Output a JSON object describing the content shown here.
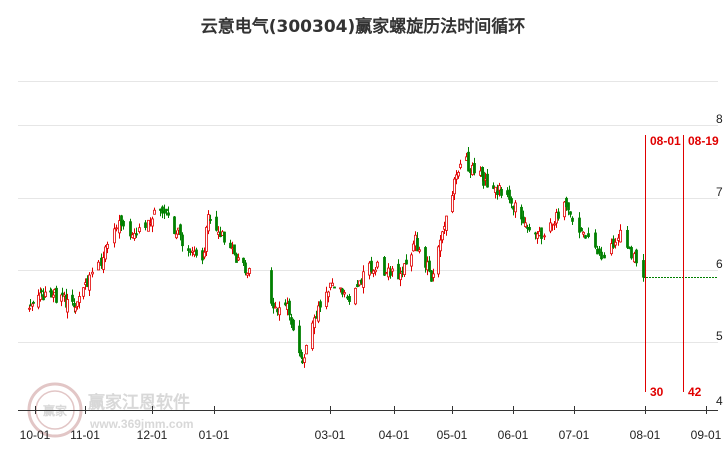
{
  "chart_data": {
    "type": "candlestick",
    "title": "云意电气(300304)赢家螺旋历法时间循环",
    "y_ticks": [
      "8",
      "7",
      "6",
      "5",
      "4"
    ],
    "y_tick_values": [
      8,
      7,
      6,
      5,
      4
    ],
    "ylim": [
      4,
      8.6
    ],
    "x_ticks": [
      "10-01",
      "11-01",
      "12-01",
      "01-01",
      "03-01",
      "04-01",
      "05-01",
      "06-01",
      "07-01",
      "08-01",
      "09-01"
    ],
    "grid": true,
    "colors": {
      "up": "#e00000",
      "down": "#008000",
      "cycle_line": "#e00000",
      "projection": "#008000"
    },
    "last_close": 5.9,
    "price_anchors": [
      {
        "date": "2022-09-27",
        "close": 5.45
      },
      {
        "date": "2022-10-08",
        "close": 5.7
      },
      {
        "date": "2022-10-20",
        "close": 5.55
      },
      {
        "date": "2022-10-28",
        "close": 5.55
      },
      {
        "date": "2022-11-07",
        "close": 6.05
      },
      {
        "date": "2022-11-14",
        "close": 6.65
      },
      {
        "date": "2022-11-24",
        "close": 6.5
      },
      {
        "date": "2022-12-05",
        "close": 6.9
      },
      {
        "date": "2022-12-15",
        "close": 6.45
      },
      {
        "date": "2022-12-26",
        "close": 6.1
      },
      {
        "date": "2022-12-29",
        "close": 6.8
      },
      {
        "date": "2023-01-10",
        "close": 6.25
      },
      {
        "date": "2023-01-18",
        "close": 6.0
      },
      {
        "date": "2023-01-30",
        "close": 5.5
      },
      {
        "date": "2023-02-07",
        "close": 5.45
      },
      {
        "date": "2023-02-15",
        "close": 4.65
      },
      {
        "date": "2023-02-20",
        "close": 5.3
      },
      {
        "date": "2023-03-01",
        "close": 5.75
      },
      {
        "date": "2023-03-10",
        "close": 5.65
      },
      {
        "date": "2023-03-20",
        "close": 6.05
      },
      {
        "date": "2023-04-03",
        "close": 5.95
      },
      {
        "date": "2023-04-12",
        "close": 6.4
      },
      {
        "date": "2023-04-20",
        "close": 5.9
      },
      {
        "date": "2023-04-27",
        "close": 6.65
      },
      {
        "date": "2023-05-05",
        "close": 7.55
      },
      {
        "date": "2023-05-15",
        "close": 7.3
      },
      {
        "date": "2023-05-25",
        "close": 7.1
      },
      {
        "date": "2023-06-05",
        "close": 6.75
      },
      {
        "date": "2023-06-15",
        "close": 6.45
      },
      {
        "date": "2023-06-26",
        "close": 6.9
      },
      {
        "date": "2023-07-05",
        "close": 6.45
      },
      {
        "date": "2023-07-14",
        "close": 6.15
      },
      {
        "date": "2023-07-21",
        "close": 6.55
      },
      {
        "date": "2023-07-31",
        "close": 5.9
      }
    ],
    "cycle_lines": [
      {
        "date": "08-01",
        "count": "30"
      },
      {
        "date": "08-19",
        "count": "42"
      }
    ]
  },
  "watermark": {
    "logo_text": "赢家",
    "text": "赢家江恩软件",
    "url": "www.369jmm.com"
  }
}
